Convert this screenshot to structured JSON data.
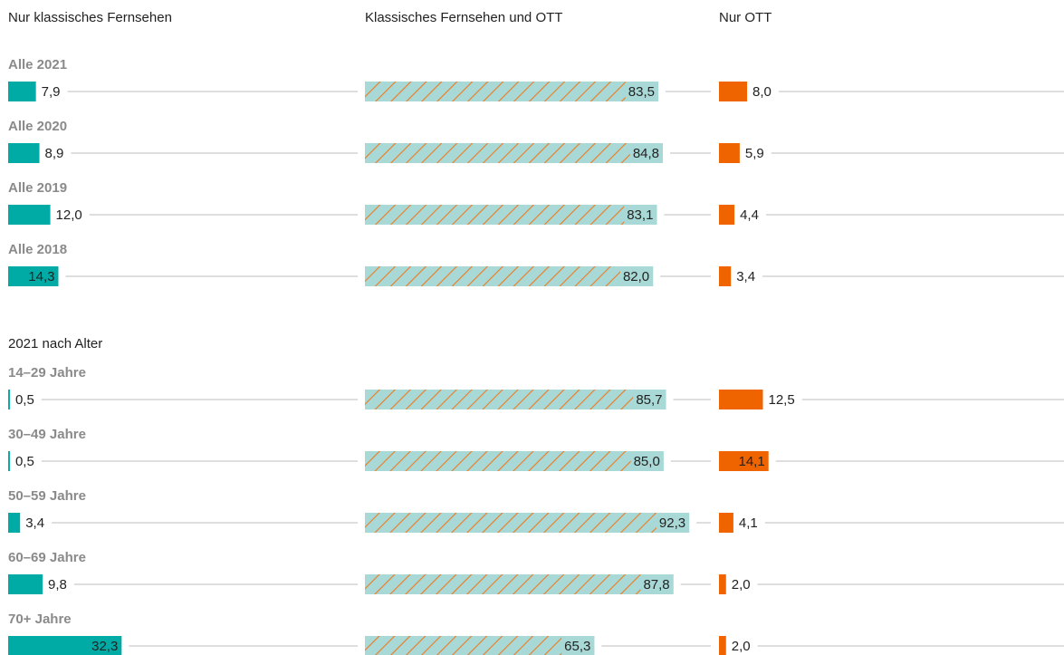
{
  "chart_data": {
    "type": "bar",
    "orientation": "horizontal",
    "categories": [
      "Alle 2021",
      "Alle 2020",
      "Alle 2019",
      "Alle 2018",
      "14–29 Jahre",
      "30–49 Jahre",
      "50–59 Jahre",
      "60–69 Jahre",
      "70+ Jahre"
    ],
    "group_label": "2021 nach Alter",
    "xlim": [
      0,
      100
    ],
    "series": [
      {
        "name": "Nur klassisches Fernsehen",
        "color": "#00aba6",
        "values": [
          7.9,
          8.9,
          12.0,
          14.3,
          0.5,
          0.5,
          3.4,
          9.8,
          32.3
        ],
        "value_labels": [
          "7,9",
          "8,9",
          "12,0",
          "14,3",
          "0,5",
          "0,5",
          "3,4",
          "9,8",
          "32,3"
        ]
      },
      {
        "name": "Klassisches Fernsehen und OTT",
        "color": "#a8d9d7",
        "hatch_color": "#ef7a1e",
        "values": [
          83.5,
          84.8,
          83.1,
          82.0,
          85.7,
          85.0,
          92.3,
          87.8,
          65.3
        ],
        "value_labels": [
          "83,5",
          "84,8",
          "83,1",
          "82,0",
          "85,7",
          "85,0",
          "92,3",
          "87,8",
          "65,3"
        ]
      },
      {
        "name": "Nur OTT",
        "color": "#f06400",
        "values": [
          8.0,
          5.9,
          4.4,
          3.4,
          12.5,
          14.1,
          4.1,
          2.0,
          2.0
        ],
        "value_labels": [
          "8,0",
          "5,9",
          "4,4",
          "3,4",
          "12,5",
          "14,1",
          "4,1",
          "2,0",
          "2,0"
        ]
      }
    ]
  }
}
